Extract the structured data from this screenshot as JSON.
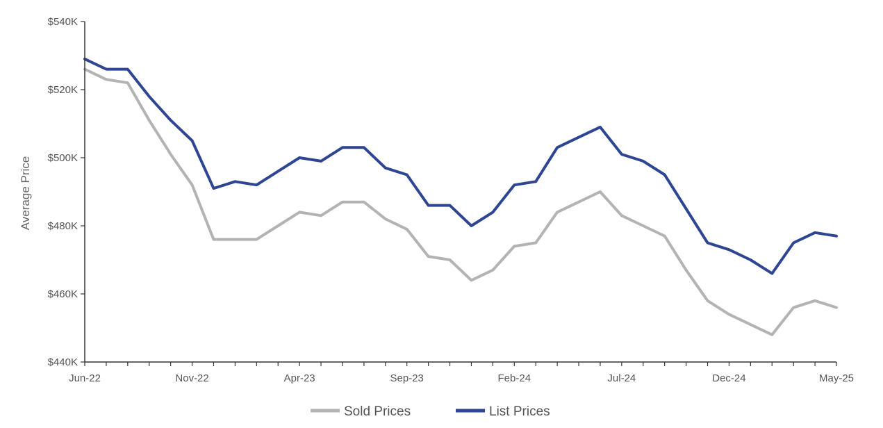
{
  "chart_data": {
    "type": "line",
    "title": "",
    "xlabel": "",
    "ylabel": "Average Price",
    "ylim": [
      440000,
      540000
    ],
    "y_ticks": [
      440000,
      460000,
      480000,
      500000,
      520000,
      540000
    ],
    "y_tick_labels": [
      "$440K",
      "$460K",
      "$480K",
      "$500K",
      "$520K",
      "$540K"
    ],
    "x": [
      "Jun-22",
      "Jul-22",
      "Aug-22",
      "Sep-22",
      "Oct-22",
      "Nov-22",
      "Dec-22",
      "Jan-23",
      "Feb-23",
      "Mar-23",
      "Apr-23",
      "May-23",
      "Jun-23",
      "Jul-23",
      "Aug-23",
      "Sep-23",
      "Oct-23",
      "Nov-23",
      "Dec-23",
      "Jan-24",
      "Feb-24",
      "Mar-24",
      "Apr-24",
      "May-24",
      "Jun-24",
      "Jul-24",
      "Aug-24",
      "Sep-24",
      "Oct-24",
      "Nov-24",
      "Dec-24",
      "Jan-25",
      "Feb-25",
      "Mar-25",
      "Apr-25",
      "May-25"
    ],
    "x_tick_labels": [
      {
        "index": 0,
        "label": "Jun-22"
      },
      {
        "index": 5,
        "label": "Nov-22"
      },
      {
        "index": 10,
        "label": "Apr-23"
      },
      {
        "index": 15,
        "label": "Sep-23"
      },
      {
        "index": 20,
        "label": "Feb-24"
      },
      {
        "index": 25,
        "label": "Jul-24"
      },
      {
        "index": 30,
        "label": "Dec-24"
      },
      {
        "index": 35,
        "label": "May-25"
      }
    ],
    "grid": false,
    "legend_position": "bottom-center",
    "series": [
      {
        "name": "Sold Prices",
        "color": "#b3b3b3",
        "values": [
          526000,
          523000,
          522000,
          511000,
          501000,
          492000,
          476000,
          476000,
          476000,
          480000,
          484000,
          483000,
          487000,
          487000,
          482000,
          479000,
          471000,
          470000,
          464000,
          467000,
          474000,
          475000,
          484000,
          487000,
          490000,
          483000,
          480000,
          477000,
          467000,
          458000,
          454000,
          451000,
          448000,
          456000,
          458000,
          456000
        ]
      },
      {
        "name": "List Prices",
        "color": "#2e4593",
        "values": [
          529000,
          526000,
          526000,
          518000,
          511000,
          505000,
          491000,
          493000,
          492000,
          496000,
          500000,
          499000,
          503000,
          503000,
          497000,
          495000,
          486000,
          486000,
          480000,
          484000,
          492000,
          493000,
          503000,
          506000,
          509000,
          501000,
          499000,
          495000,
          485000,
          475000,
          473000,
          470000,
          466000,
          475000,
          478000,
          477000
        ]
      }
    ]
  }
}
